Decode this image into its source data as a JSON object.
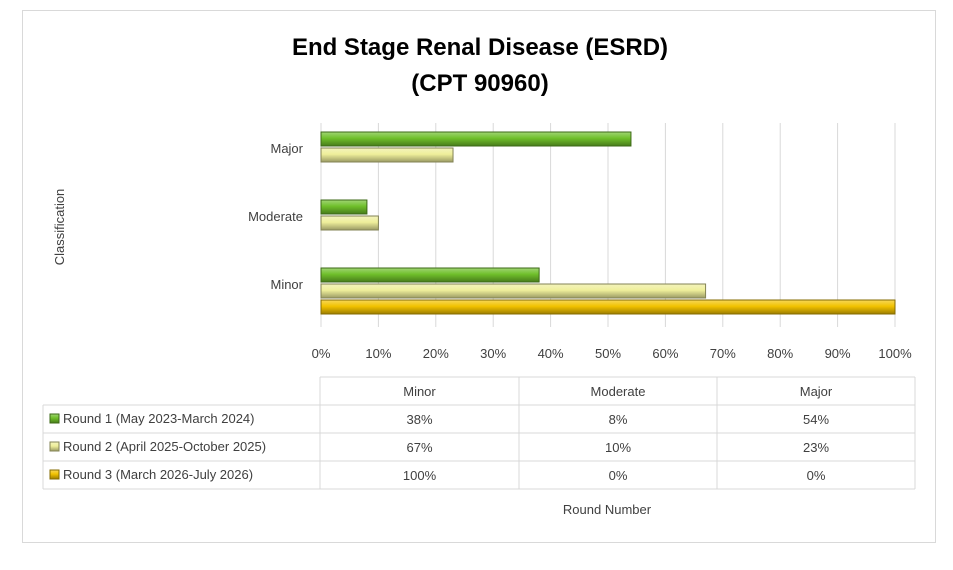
{
  "chart_data": {
    "type": "bar",
    "orientation": "horizontal",
    "title": "End Stage Renal Disease (ESRD)",
    "subtitle": "(CPT 90960)",
    "xlabel": "Round Number",
    "ylabel": "Classification",
    "categories": [
      "Minor",
      "Moderate",
      "Major"
    ],
    "xlim": [
      0,
      100
    ],
    "x_ticks": [
      "0%",
      "10%",
      "20%",
      "30%",
      "40%",
      "50%",
      "60%",
      "70%",
      "80%",
      "90%",
      "100%"
    ],
    "grid": true,
    "legend": "data-table-below",
    "series": [
      {
        "name": "Round 1 (May 2023-March 2024)",
        "values": [
          38,
          8,
          54
        ],
        "labels": [
          "38%",
          "8%",
          "54%"
        ],
        "color": "#6fbf2a"
      },
      {
        "name": "Round 2 (April 2025-October 2025)",
        "values": [
          67,
          10,
          23
        ],
        "labels": [
          "67%",
          "10%",
          "23%"
        ],
        "color": "#eeee9a"
      },
      {
        "name": "Round 3 (March 2026-July 2026)",
        "values": [
          100,
          0,
          0
        ],
        "labels": [
          "100%",
          "0%",
          "0%"
        ],
        "color": "#f2c200"
      }
    ]
  }
}
